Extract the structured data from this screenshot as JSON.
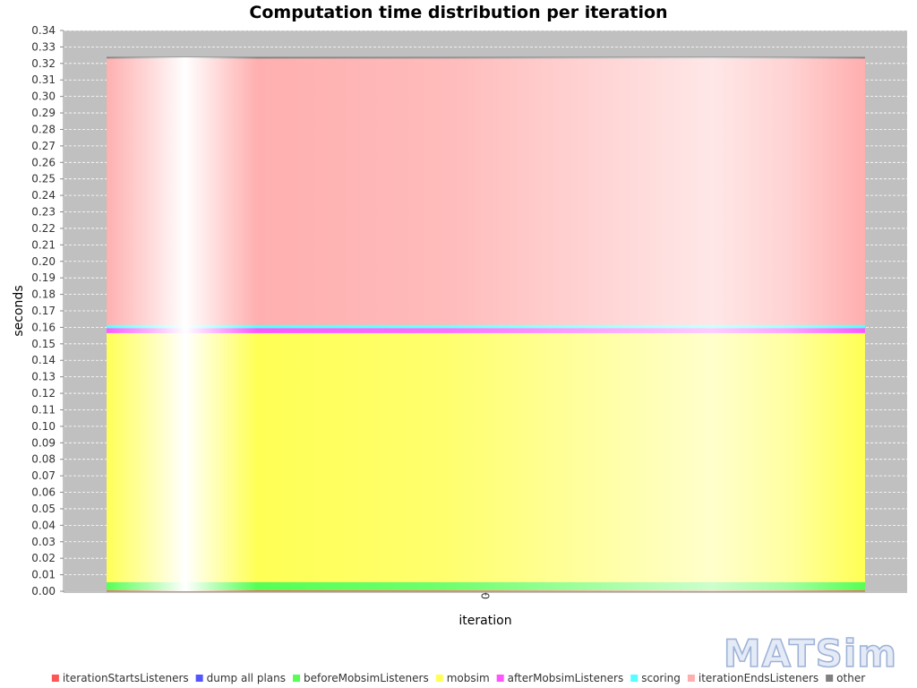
{
  "chart_data": {
    "type": "bar",
    "stacked": true,
    "title": "Computation time distribution per iteration",
    "xlabel": "iteration",
    "ylabel": "seconds",
    "categories": [
      "0"
    ],
    "ylim": [
      0,
      0.34
    ],
    "ytick_step": 0.01,
    "grid": true,
    "legend_position": "bottom",
    "series": [
      {
        "name": "iterationStartsListeners",
        "color": "#ff5555",
        "values": [
          0.0005
        ]
      },
      {
        "name": "dump all plans",
        "color": "#5555ff",
        "values": [
          0.0
        ]
      },
      {
        "name": "beforeMobsimListeners",
        "color": "#55ff55",
        "values": [
          0.005
        ]
      },
      {
        "name": "mobsim",
        "color": "#ffff55",
        "values": [
          0.151
        ]
      },
      {
        "name": "afterMobsimListeners",
        "color": "#ff55ff",
        "values": [
          0.003
        ]
      },
      {
        "name": "scoring",
        "color": "#55ffff",
        "values": [
          0.002
        ]
      },
      {
        "name": "iterationEndsListeners",
        "color": "#ffafaf",
        "values": [
          0.1615
        ]
      },
      {
        "name": "other",
        "color": "#808080",
        "values": [
          0.001
        ]
      }
    ]
  },
  "logo_text": "MATSim"
}
